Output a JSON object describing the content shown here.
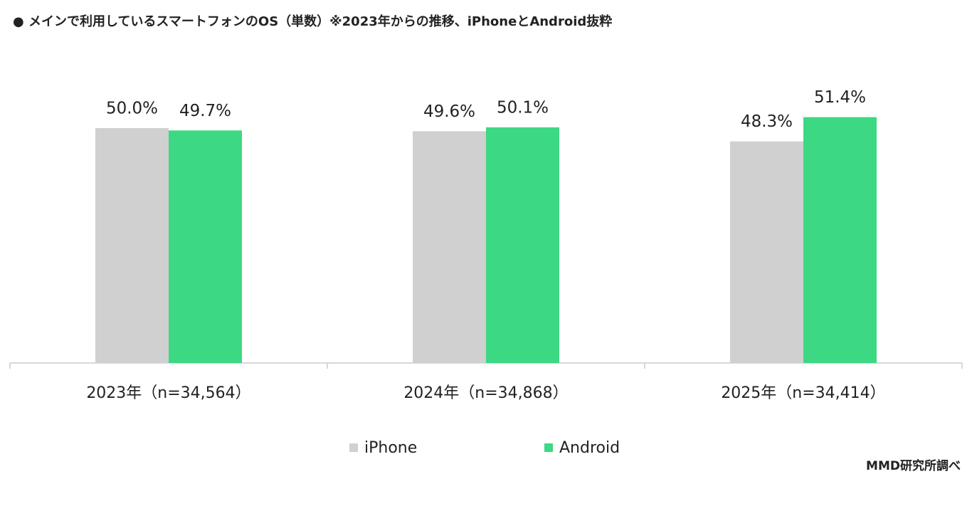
{
  "chart_data": {
    "type": "bar",
    "title": "● メインで利用しているスマートフォンのOS（単数）※2023年からの推移、iPhoneとAndroid抜粋",
    "categories": [
      "2023年（n=34,564）",
      "2024年（n=34,868）",
      "2025年（n=34,414）"
    ],
    "series": [
      {
        "name": "iPhone",
        "color": "#d0d0d0",
        "values": [
          50.0,
          49.6,
          48.3
        ],
        "value_labels": [
          "50.0%",
          "49.6%",
          "48.3%"
        ]
      },
      {
        "name": "Android",
        "color": "#3dd884",
        "values": [
          49.7,
          50.1,
          51.4
        ],
        "value_labels": [
          "49.7%",
          "50.1%",
          "51.4%"
        ]
      }
    ],
    "ylim": [
      20,
      60
    ],
    "source": "MMD研究所調べ"
  }
}
